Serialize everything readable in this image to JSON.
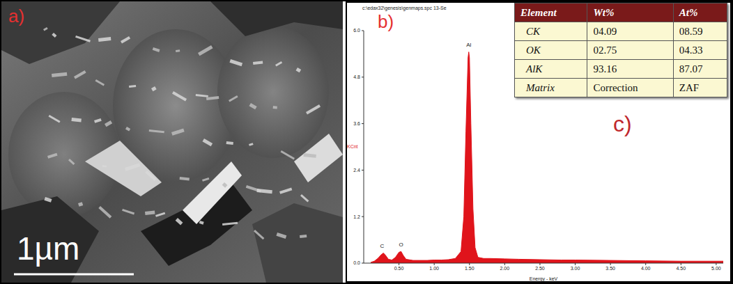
{
  "image": {
    "label": "a)",
    "scale_bar": "1µm"
  },
  "chart_data": {
    "type": "area",
    "panel_label": "b)",
    "header": "c:\\edax32\\genesis\\genmaps.spc 13-Se",
    "x_label": "Energy - keV",
    "y_label": "KCnt",
    "x": [
      0.1,
      0.15,
      0.2,
      0.25,
      0.28,
      0.31,
      0.35,
      0.4,
      0.45,
      0.5,
      0.53,
      0.56,
      0.6,
      0.7,
      0.8,
      0.9,
      1.0,
      1.1,
      1.2,
      1.3,
      1.38,
      1.42,
      1.45,
      1.48,
      1.49,
      1.5,
      1.52,
      1.55,
      1.58,
      1.62,
      1.7,
      1.8,
      2.0,
      2.2,
      2.5,
      2.8,
      3.0,
      3.5,
      4.0,
      4.5,
      5.0,
      5.1
    ],
    "values": [
      0.02,
      0.05,
      0.12,
      0.22,
      0.26,
      0.2,
      0.1,
      0.08,
      0.15,
      0.28,
      0.3,
      0.2,
      0.1,
      0.07,
      0.07,
      0.07,
      0.08,
      0.08,
      0.09,
      0.12,
      0.3,
      1.2,
      3.4,
      5.3,
      5.45,
      5.3,
      3.6,
      1.4,
      0.4,
      0.15,
      0.12,
      0.12,
      0.11,
      0.1,
      0.09,
      0.08,
      0.08,
      0.07,
      0.06,
      0.05,
      0.05,
      0.05
    ],
    "color": "#e0141b",
    "xlim": [
      0,
      5.1
    ],
    "xticks": [
      {
        "value": 0.5,
        "label": "0.50"
      },
      {
        "value": 1.0,
        "label": "1.00"
      },
      {
        "value": 1.5,
        "label": "1.50"
      },
      {
        "value": 2.0,
        "label": "2.00"
      },
      {
        "value": 2.5,
        "label": "2.50"
      },
      {
        "value": 3.0,
        "label": "3.00"
      },
      {
        "value": 3.5,
        "label": "3.50"
      },
      {
        "value": 4.0,
        "label": "4.00"
      },
      {
        "value": 4.5,
        "label": "4.50"
      },
      {
        "value": 5.0,
        "label": "5.00"
      }
    ],
    "ylim": [
      0,
      6.0
    ],
    "yticks": [
      {
        "value": 0,
        "label": "0.0"
      },
      {
        "value": 1.2,
        "label": "1.2"
      },
      {
        "value": 2.4,
        "label": "2.4"
      },
      {
        "value": 3.6,
        "label": "3.6"
      },
      {
        "value": 4.8,
        "label": "4.8"
      },
      {
        "value": 6.0,
        "label": "6.0"
      }
    ],
    "grid": false,
    "annotations": [
      {
        "text": "C",
        "x": 0.26,
        "y": 0.3
      },
      {
        "text": "O",
        "x": 0.53,
        "y": 0.34
      },
      {
        "text": "Al",
        "x": 1.49,
        "y": 5.5
      }
    ]
  },
  "table": {
    "label": "c)",
    "header": [
      "Element",
      "Wt%",
      "At%"
    ],
    "rows": [
      [
        "CK",
        "04.09",
        "08.59"
      ],
      [
        "OK",
        "02.75",
        "04.33"
      ],
      [
        "AlK",
        "93.16",
        "87.07"
      ],
      [
        "Matrix",
        "Correction",
        "ZAF"
      ]
    ]
  }
}
